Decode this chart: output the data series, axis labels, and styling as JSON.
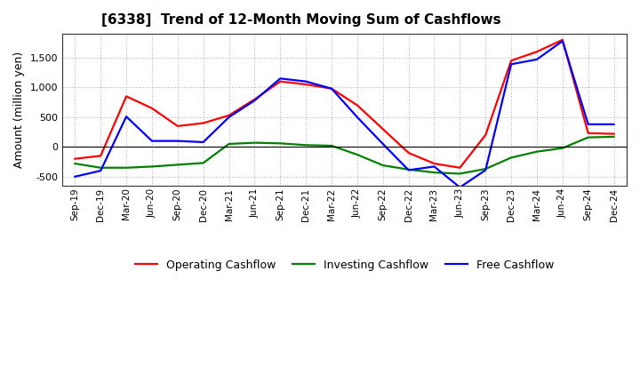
{
  "title": "[6338]  Trend of 12-Month Moving Sum of Cashflows",
  "ylabel": "Amount (million yen)",
  "x_labels": [
    "Sep-19",
    "Dec-19",
    "Mar-20",
    "Jun-20",
    "Sep-20",
    "Dec-20",
    "Mar-21",
    "Jun-21",
    "Sep-21",
    "Dec-21",
    "Mar-22",
    "Jun-22",
    "Sep-22",
    "Dec-22",
    "Mar-23",
    "Jun-23",
    "Sep-23",
    "Dec-23",
    "Mar-24",
    "Jun-24",
    "Sep-24",
    "Dec-24"
  ],
  "operating": [
    -200,
    -150,
    850,
    650,
    350,
    400,
    530,
    800,
    1100,
    1050,
    980,
    700,
    300,
    -100,
    -280,
    -350,
    200,
    1450,
    1600,
    1800,
    230,
    220
  ],
  "investing": [
    -280,
    -350,
    -350,
    -330,
    -300,
    -270,
    50,
    70,
    60,
    30,
    20,
    -130,
    -310,
    -380,
    -430,
    -450,
    -370,
    -180,
    -80,
    -20,
    160,
    170
  ],
  "free": [
    -500,
    -400,
    510,
    100,
    100,
    80,
    500,
    780,
    1150,
    1100,
    980,
    500,
    50,
    -390,
    -330,
    -680,
    -390,
    1390,
    1470,
    1780,
    380,
    380
  ],
  "ylim": [
    -650,
    1900
  ],
  "yticks": [
    -500,
    0,
    500,
    1000,
    1500
  ],
  "line_colors": {
    "operating": "#ff0000",
    "investing": "#008000",
    "free": "#0000ff"
  },
  "background_color": "#ffffff",
  "grid_color": "#b0b0b0",
  "legend": [
    "Operating Cashflow",
    "Investing Cashflow",
    "Free Cashflow"
  ]
}
